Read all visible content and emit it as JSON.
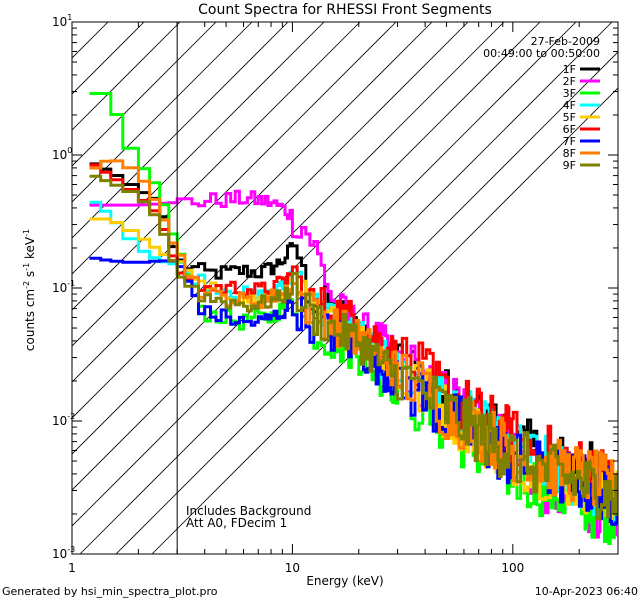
{
  "chart_data": {
    "type": "line",
    "title": "Count Spectra for RHESSI Front Segments",
    "xlabel": "Energy (keV)",
    "ylabel_parts": [
      "counts cm",
      "-2",
      " s",
      "-1",
      " keV",
      "-1"
    ],
    "xscale": "log",
    "yscale": "log",
    "xlim": [
      1,
      300
    ],
    "ylim": [
      0.001,
      10
    ],
    "x_ticks": [
      {
        "value": 1,
        "label": "1"
      },
      {
        "value": 10,
        "label": "10"
      },
      {
        "value": 100,
        "label": "100"
      }
    ],
    "y_ticks": [
      {
        "value": 0.001,
        "base": "10",
        "exp": "-3"
      },
      {
        "value": 0.01,
        "base": "10",
        "exp": "-2"
      },
      {
        "value": 0.1,
        "base": "10",
        "exp": "-1"
      },
      {
        "value": 1,
        "base": "10",
        "exp": "0"
      },
      {
        "value": 10,
        "base": "10",
        "exp": "1"
      }
    ],
    "hatched_region_x": [
      1,
      3
    ],
    "date": "27-Feb-2009",
    "time_range": "00:49:00 to 00:50:00",
    "notes": [
      "Includes Background",
      "Att A0, FDecim 1"
    ],
    "series": [
      {
        "name": "1F",
        "color": "#000000",
        "x": [
          1.2,
          1.5,
          2,
          2.5,
          3,
          4,
          5,
          6,
          7,
          8,
          9,
          10,
          10.5,
          11,
          12,
          14,
          17,
          20,
          25,
          30,
          40,
          50,
          70,
          100,
          150,
          200,
          250,
          300
        ],
        "y": [
          0.9,
          0.75,
          0.55,
          0.45,
          0.16,
          0.13,
          0.13,
          0.135,
          0.13,
          0.14,
          0.16,
          0.2,
          0.24,
          0.13,
          0.09,
          0.075,
          0.06,
          0.05,
          0.035,
          0.028,
          0.02,
          0.015,
          0.01,
          0.007,
          0.005,
          0.0045,
          0.004,
          0.003
        ]
      },
      {
        "name": "2F",
        "color": "#ff00ff",
        "x": [
          1.2,
          1.5,
          2,
          2.5,
          3,
          4,
          5,
          6,
          7,
          8,
          9,
          10,
          11,
          12,
          13,
          14,
          15,
          16,
          18,
          20,
          25,
          30,
          40,
          50,
          70,
          100,
          150,
          200,
          250,
          300
        ],
        "y": [
          0.42,
          0.42,
          0.42,
          0.43,
          0.44,
          0.45,
          0.46,
          0.47,
          0.46,
          0.44,
          0.4,
          0.35,
          0.3,
          0.25,
          0.18,
          0.13,
          0.09,
          0.07,
          0.06,
          0.05,
          0.04,
          0.03,
          0.02,
          0.015,
          0.01,
          0.006,
          0.003,
          0.0025,
          0.0022,
          0.002
        ]
      },
      {
        "name": "3F",
        "color": "#00ff00",
        "x": [
          1.2,
          1.5,
          1.7,
          2,
          2.5,
          3,
          4,
          5,
          6,
          7,
          8,
          9,
          10,
          11,
          12,
          15,
          20,
          25,
          30,
          40,
          50,
          70,
          100,
          150,
          200,
          250,
          300
        ],
        "y": [
          2.9,
          2.9,
          1.4,
          0.9,
          0.55,
          0.2,
          0.065,
          0.06,
          0.055,
          0.06,
          0.06,
          0.07,
          0.09,
          0.06,
          0.05,
          0.04,
          0.032,
          0.022,
          0.018,
          0.012,
          0.009,
          0.006,
          0.004,
          0.003,
          0.0025,
          0.002,
          0.002
        ]
      },
      {
        "name": "4F",
        "color": "#00ffff",
        "x": [
          1.2,
          1.5,
          2,
          2.5,
          3,
          4,
          5,
          6,
          7,
          8,
          9,
          10,
          10.5,
          11,
          12,
          15,
          20,
          25,
          30,
          40,
          50,
          70,
          100,
          150,
          200,
          250,
          300
        ],
        "y": [
          0.48,
          0.35,
          0.2,
          0.16,
          0.15,
          0.11,
          0.1,
          0.09,
          0.085,
          0.09,
          0.1,
          0.13,
          0.16,
          0.1,
          0.075,
          0.06,
          0.045,
          0.03,
          0.024,
          0.018,
          0.013,
          0.009,
          0.006,
          0.0045,
          0.0035,
          0.003,
          0.0025
        ]
      },
      {
        "name": "5F",
        "color": "#ffcc00",
        "x": [
          1.2,
          1.5,
          2,
          2.5,
          3,
          4,
          5,
          6,
          7,
          8,
          9,
          10,
          11,
          12,
          15,
          20,
          25,
          30,
          40,
          50,
          70,
          100,
          150,
          200,
          250,
          300
        ],
        "y": [
          0.33,
          0.33,
          0.25,
          0.19,
          0.15,
          0.1,
          0.09,
          0.085,
          0.08,
          0.085,
          0.09,
          0.11,
          0.09,
          0.07,
          0.055,
          0.042,
          0.03,
          0.022,
          0.016,
          0.012,
          0.008,
          0.0055,
          0.004,
          0.0035,
          0.003,
          0.0025
        ]
      },
      {
        "name": "6F",
        "color": "#ff0000",
        "x": [
          1.2,
          1.5,
          2,
          2.5,
          3,
          4,
          5,
          6,
          7,
          8,
          9,
          10,
          11,
          12,
          15,
          20,
          25,
          30,
          40,
          50,
          70,
          100,
          150,
          200,
          250,
          300
        ],
        "y": [
          0.9,
          0.7,
          0.5,
          0.35,
          0.14,
          0.1,
          0.1,
          0.1,
          0.095,
          0.1,
          0.11,
          0.13,
          0.1,
          0.08,
          0.07,
          0.055,
          0.04,
          0.03,
          0.022,
          0.016,
          0.011,
          0.0075,
          0.0055,
          0.0045,
          0.004,
          0.003
        ]
      },
      {
        "name": "7F",
        "color": "#0000ff",
        "x": [
          1.2,
          1.5,
          2,
          2.5,
          3,
          4,
          5,
          6,
          7,
          8,
          9,
          10,
          11,
          12,
          15,
          20,
          25,
          30,
          40,
          50,
          70,
          100,
          150,
          200,
          250,
          300
        ],
        "y": [
          0.17,
          0.16,
          0.155,
          0.16,
          0.16,
          0.065,
          0.06,
          0.055,
          0.055,
          0.06,
          0.065,
          0.08,
          0.065,
          0.055,
          0.045,
          0.035,
          0.025,
          0.02,
          0.015,
          0.011,
          0.0075,
          0.005,
          0.004,
          0.0035,
          0.003,
          0.0025
        ]
      },
      {
        "name": "8F",
        "color": "#ff8000",
        "x": [
          1.2,
          1.5,
          2,
          2.5,
          3,
          4,
          5,
          6,
          7,
          8,
          9,
          10,
          11,
          12,
          15,
          20,
          25,
          30,
          40,
          50,
          70,
          100,
          150,
          200,
          250,
          300
        ],
        "y": [
          0.75,
          0.95,
          0.75,
          0.4,
          0.18,
          0.09,
          0.085,
          0.08,
          0.08,
          0.085,
          0.09,
          0.11,
          0.085,
          0.07,
          0.055,
          0.042,
          0.03,
          0.024,
          0.017,
          0.012,
          0.0085,
          0.006,
          0.0045,
          0.004,
          0.0035,
          0.003
        ]
      },
      {
        "name": "9F",
        "color": "#808000",
        "x": [
          1.2,
          1.5,
          2,
          2.5,
          3,
          4,
          5,
          6,
          7,
          8,
          9,
          10,
          11,
          12,
          15,
          20,
          25,
          30,
          40,
          50,
          70,
          100,
          150,
          200,
          250,
          300
        ],
        "y": [
          0.72,
          0.62,
          0.5,
          0.32,
          0.13,
          0.085,
          0.08,
          0.075,
          0.075,
          0.08,
          0.085,
          0.1,
          0.08,
          0.065,
          0.05,
          0.04,
          0.028,
          0.022,
          0.016,
          0.012,
          0.008,
          0.0055,
          0.004,
          0.0035,
          0.003,
          0.0025
        ]
      }
    ]
  },
  "footer": {
    "generated_by": "Generated by hsi_min_spectra_plot.pro",
    "timestamp": "10-Apr-2023 06:40"
  }
}
